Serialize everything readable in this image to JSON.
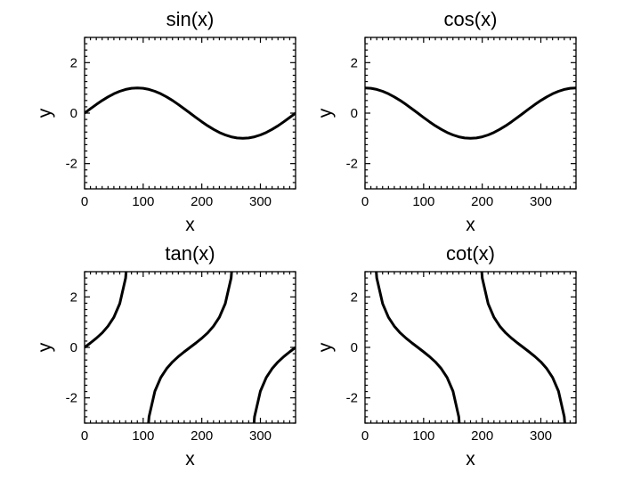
{
  "figure": {
    "background": "#ffffff",
    "axis_color": "#000000",
    "text_color": "#000000"
  },
  "chart_data": [
    {
      "type": "line",
      "title": "sin(x)",
      "xlabel": "x",
      "ylabel": "y",
      "xlim": [
        0,
        360
      ],
      "ylim": [
        -3,
        3
      ],
      "xticks": [
        0,
        100,
        200,
        300
      ],
      "yticks": [
        -2,
        0,
        2
      ],
      "x_minor_step": 10,
      "y_minor_step": 0.25,
      "line_color": "#000000",
      "line_width": 3,
      "x": [
        0,
        10,
        20,
        30,
        40,
        50,
        60,
        70,
        80,
        90,
        100,
        110,
        120,
        130,
        140,
        150,
        160,
        170,
        180,
        190,
        200,
        210,
        220,
        230,
        240,
        250,
        260,
        270,
        280,
        290,
        300,
        310,
        320,
        330,
        340,
        350,
        360
      ],
      "y": [
        0,
        0.174,
        0.342,
        0.5,
        0.643,
        0.766,
        0.866,
        0.94,
        0.985,
        1,
        0.985,
        0.94,
        0.866,
        0.766,
        0.643,
        0.5,
        0.342,
        0.174,
        0,
        -0.174,
        -0.342,
        -0.5,
        -0.643,
        -0.766,
        -0.866,
        -0.94,
        -0.985,
        -1,
        -0.985,
        -0.94,
        -0.866,
        -0.766,
        -0.643,
        -0.5,
        -0.342,
        -0.174,
        0
      ]
    },
    {
      "type": "line",
      "title": "cos(x)",
      "xlabel": "x",
      "ylabel": "y",
      "xlim": [
        0,
        360
      ],
      "ylim": [
        -3,
        3
      ],
      "xticks": [
        0,
        100,
        200,
        300
      ],
      "yticks": [
        -2,
        0,
        2
      ],
      "x_minor_step": 10,
      "y_minor_step": 0.25,
      "line_color": "#000000",
      "line_width": 3,
      "x": [
        0,
        10,
        20,
        30,
        40,
        50,
        60,
        70,
        80,
        90,
        100,
        110,
        120,
        130,
        140,
        150,
        160,
        170,
        180,
        190,
        200,
        210,
        220,
        230,
        240,
        250,
        260,
        270,
        280,
        290,
        300,
        310,
        320,
        330,
        340,
        350,
        360
      ],
      "y": [
        1,
        0.985,
        0.94,
        0.866,
        0.766,
        0.643,
        0.5,
        0.342,
        0.174,
        0,
        -0.174,
        -0.342,
        -0.5,
        -0.643,
        -0.766,
        -0.866,
        -0.94,
        -0.985,
        -1,
        -0.985,
        -0.94,
        -0.866,
        -0.766,
        -0.643,
        -0.5,
        -0.342,
        -0.174,
        0,
        0.174,
        0.342,
        0.5,
        0.643,
        0.766,
        0.866,
        0.94,
        0.985,
        1
      ]
    },
    {
      "type": "line",
      "title": "tan(x)",
      "xlabel": "x",
      "ylabel": "y",
      "xlim": [
        0,
        360
      ],
      "ylim": [
        -3,
        3
      ],
      "xticks": [
        0,
        100,
        200,
        300
      ],
      "yticks": [
        -2,
        0,
        2
      ],
      "x_minor_step": 10,
      "y_minor_step": 0.25,
      "line_color": "#000000",
      "line_width": 3,
      "x": [
        0,
        10,
        20,
        30,
        40,
        50,
        60,
        70,
        80,
        90,
        100,
        110,
        120,
        130,
        140,
        150,
        160,
        170,
        180,
        190,
        200,
        210,
        220,
        230,
        240,
        250,
        260,
        270,
        280,
        290,
        300,
        310,
        320,
        330,
        340,
        350,
        360
      ],
      "y": [
        0,
        0.176,
        0.364,
        0.577,
        0.839,
        1.192,
        1.732,
        2.747,
        5.671,
        null,
        -5.671,
        -2.747,
        -1.732,
        -1.192,
        -0.839,
        -0.577,
        -0.364,
        -0.176,
        0,
        0.176,
        0.364,
        0.577,
        0.839,
        1.192,
        1.732,
        2.747,
        5.671,
        null,
        -5.671,
        -2.747,
        -1.732,
        -1.192,
        -0.839,
        -0.577,
        -0.364,
        -0.176,
        0
      ]
    },
    {
      "type": "line",
      "title": "cot(x)",
      "xlabel": "x",
      "ylabel": "y",
      "xlim": [
        0,
        360
      ],
      "ylim": [
        -3,
        3
      ],
      "xticks": [
        0,
        100,
        200,
        300
      ],
      "yticks": [
        -2,
        0,
        2
      ],
      "x_minor_step": 10,
      "y_minor_step": 0.25,
      "line_color": "#000000",
      "line_width": 3,
      "x": [
        0,
        10,
        20,
        30,
        40,
        50,
        60,
        70,
        80,
        90,
        100,
        110,
        120,
        130,
        140,
        150,
        160,
        170,
        180,
        190,
        200,
        210,
        220,
        230,
        240,
        250,
        260,
        270,
        280,
        290,
        300,
        310,
        320,
        330,
        340,
        350,
        360
      ],
      "y": [
        null,
        5.671,
        2.747,
        1.732,
        1.192,
        0.839,
        0.577,
        0.364,
        0.176,
        0,
        -0.176,
        -0.364,
        -0.577,
        -0.839,
        -1.192,
        -1.732,
        -2.747,
        -5.671,
        null,
        5.671,
        2.747,
        1.732,
        1.192,
        0.839,
        0.577,
        0.364,
        0.176,
        0,
        -0.176,
        -0.364,
        -0.577,
        -0.839,
        -1.192,
        -1.732,
        -2.747,
        -5.671,
        null
      ]
    }
  ]
}
